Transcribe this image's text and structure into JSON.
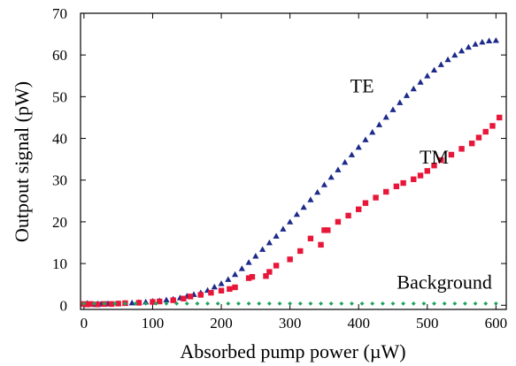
{
  "chart_data": {
    "type": "scatter",
    "xlabel": "Absorbed pump power (µW)",
    "ylabel": "Outpout signal (pW)",
    "xlim": [
      -5,
      615
    ],
    "ylim": [
      -1,
      70
    ],
    "xticks": [
      "0",
      "100",
      "200",
      "300",
      "400",
      "500",
      "600"
    ],
    "yticks": [
      "0",
      "10",
      "20",
      "30",
      "40",
      "50",
      "60",
      "70"
    ],
    "grid": false,
    "series": [
      {
        "name": "TE",
        "marker": "triangle",
        "color": "#1c2a8a",
        "x": [
          2,
          5,
          10,
          15,
          20,
          25,
          30,
          35,
          40,
          50,
          60,
          70,
          80,
          90,
          100,
          110,
          120,
          130,
          140,
          150,
          160,
          170,
          180,
          190,
          200,
          210,
          220,
          230,
          240,
          250,
          260,
          270,
          280,
          290,
          300,
          310,
          320,
          330,
          340,
          350,
          360,
          370,
          380,
          390,
          400,
          410,
          420,
          430,
          440,
          450,
          460,
          470,
          480,
          490,
          500,
          510,
          520,
          530,
          540,
          550,
          560,
          570,
          580,
          590,
          600
        ],
        "y": [
          0.2,
          0.5,
          0.3,
          0.2,
          0.4,
          0.3,
          0.3,
          0.4,
          0.3,
          0.4,
          0.5,
          0.6,
          0.7,
          0.8,
          1.0,
          1.1,
          1.3,
          1.5,
          1.8,
          2.2,
          2.6,
          3.0,
          3.6,
          4.4,
          5.2,
          6.2,
          7.4,
          8.8,
          10.3,
          11.8,
          13.4,
          15.0,
          16.6,
          18.3,
          20.0,
          21.8,
          23.5,
          25.3,
          27.1,
          28.9,
          30.7,
          32.5,
          34.3,
          36.1,
          37.9,
          39.7,
          41.5,
          43.3,
          45.1,
          46.9,
          48.6,
          50.3,
          51.9,
          53.5,
          55.0,
          56.4,
          57.7,
          58.9,
          60.0,
          61.0,
          61.9,
          62.6,
          63.1,
          63.4,
          63.5
        ]
      },
      {
        "name": "TM",
        "marker": "square",
        "color": "#e8173a",
        "x": [
          0,
          5,
          10,
          20,
          30,
          40,
          50,
          60,
          80,
          100,
          110,
          130,
          145,
          155,
          170,
          185,
          200,
          212,
          220,
          240,
          245,
          265,
          270,
          280,
          300,
          315,
          330,
          345,
          350,
          355,
          370,
          385,
          400,
          410,
          425,
          440,
          455,
          465,
          480,
          490,
          500,
          510,
          520,
          535,
          550,
          565,
          575,
          585,
          595,
          605
        ],
        "y": [
          0.3,
          0.2,
          0.3,
          0.2,
          0.3,
          0.3,
          0.4,
          0.5,
          0.6,
          0.8,
          0.9,
          1.2,
          1.6,
          2.1,
          2.5,
          3.0,
          3.5,
          3.9,
          4.3,
          6.5,
          6.8,
          7.0,
          8.0,
          9.5,
          11.0,
          13.0,
          16.0,
          14.5,
          18.0,
          18.0,
          20.0,
          21.5,
          23.0,
          24.5,
          25.8,
          27.2,
          28.5,
          29.3,
          30.2,
          31.1,
          32.2,
          33.5,
          34.8,
          36.1,
          37.5,
          38.8,
          40.2,
          41.6,
          43.0,
          45.0
        ]
      },
      {
        "name": "Background",
        "marker": "diamond",
        "color": "#1fa35a",
        "x": [
          0,
          15,
          30,
          45,
          60,
          75,
          90,
          105,
          120,
          135,
          150,
          165,
          180,
          195,
          210,
          225,
          240,
          255,
          270,
          285,
          300,
          315,
          330,
          345,
          360,
          375,
          390,
          405,
          420,
          435,
          450,
          465,
          480,
          495,
          510,
          525,
          540,
          555,
          570,
          585,
          600
        ],
        "y": [
          0.4,
          0.4,
          0.4,
          0.4,
          0.4,
          0.4,
          0.4,
          0.4,
          0.4,
          0.4,
          0.4,
          0.4,
          0.4,
          0.4,
          0.4,
          0.4,
          0.4,
          0.4,
          0.4,
          0.4,
          0.4,
          0.4,
          0.4,
          0.4,
          0.4,
          0.4,
          0.4,
          0.4,
          0.4,
          0.4,
          0.4,
          0.4,
          0.4,
          0.4,
          0.4,
          0.4,
          0.4,
          0.4,
          0.4,
          0.4,
          0.4
        ]
      }
    ],
    "annotations": [
      {
        "text": "TE",
        "x": 405,
        "y": 51
      },
      {
        "text": "TM",
        "x": 510,
        "y": 34
      },
      {
        "text": "Background",
        "x": 525,
        "y": 4
      }
    ]
  }
}
